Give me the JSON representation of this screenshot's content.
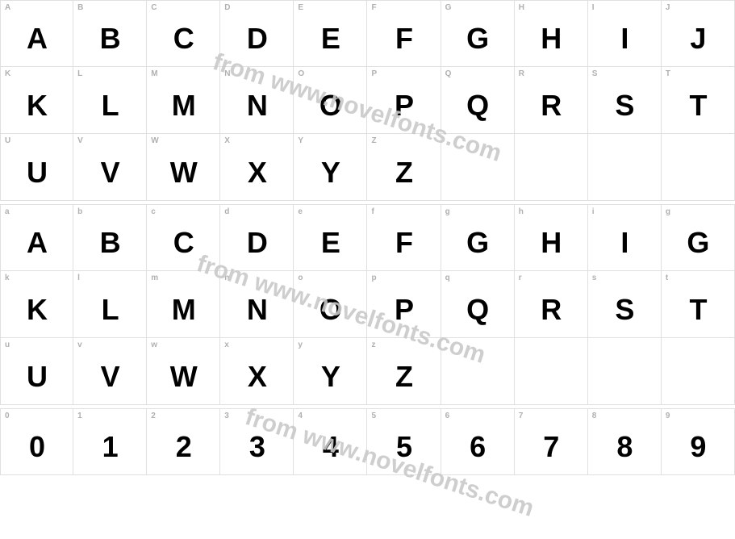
{
  "watermark_text": "from www.novelfonts.com",
  "watermark_color": "#c9c9c9",
  "border_color": "#e0e0e0",
  "label_color": "#b0b0b0",
  "glyph_color": "#000000",
  "background": "#ffffff",
  "rows": [
    {
      "labels": [
        "A",
        "B",
        "C",
        "D",
        "E",
        "F",
        "G",
        "H",
        "I",
        "J"
      ],
      "glyphs": [
        "A",
        "B",
        "C",
        "D",
        "E",
        "F",
        "G",
        "H",
        "I",
        "J"
      ]
    },
    {
      "labels": [
        "K",
        "L",
        "M",
        "N",
        "O",
        "P",
        "Q",
        "R",
        "S",
        "T"
      ],
      "glyphs": [
        "K",
        "L",
        "M",
        "N",
        "O",
        "P",
        "Q",
        "R",
        "S",
        "T"
      ]
    },
    {
      "labels": [
        "U",
        "V",
        "W",
        "X",
        "Y",
        "Z",
        "",
        "",
        "",
        ""
      ],
      "glyphs": [
        "U",
        "V",
        "W",
        "X",
        "Y",
        "Z",
        "",
        "",
        "",
        ""
      ]
    },
    {
      "labels": [
        "a",
        "b",
        "c",
        "d",
        "e",
        "f",
        "g",
        "h",
        "i",
        "g"
      ],
      "glyphs": [
        "A",
        "B",
        "C",
        "D",
        "E",
        "F",
        "G",
        "H",
        "I",
        "G"
      ]
    },
    {
      "labels": [
        "k",
        "l",
        "m",
        "n",
        "o",
        "p",
        "q",
        "r",
        "s",
        "t"
      ],
      "glyphs": [
        "K",
        "L",
        "M",
        "N",
        "O",
        "P",
        "Q",
        "R",
        "S",
        "T"
      ]
    },
    {
      "labels": [
        "u",
        "v",
        "w",
        "x",
        "y",
        "z",
        "",
        "",
        "",
        ""
      ],
      "glyphs": [
        "U",
        "V",
        "W",
        "X",
        "Y",
        "Z",
        "",
        "",
        "",
        ""
      ]
    },
    {
      "labels": [
        "0",
        "1",
        "2",
        "3",
        "4",
        "5",
        "6",
        "7",
        "8",
        "9"
      ],
      "glyphs": [
        "0",
        "1",
        "2",
        "3",
        "4",
        "5",
        "6",
        "7",
        "8",
        "9"
      ]
    }
  ]
}
